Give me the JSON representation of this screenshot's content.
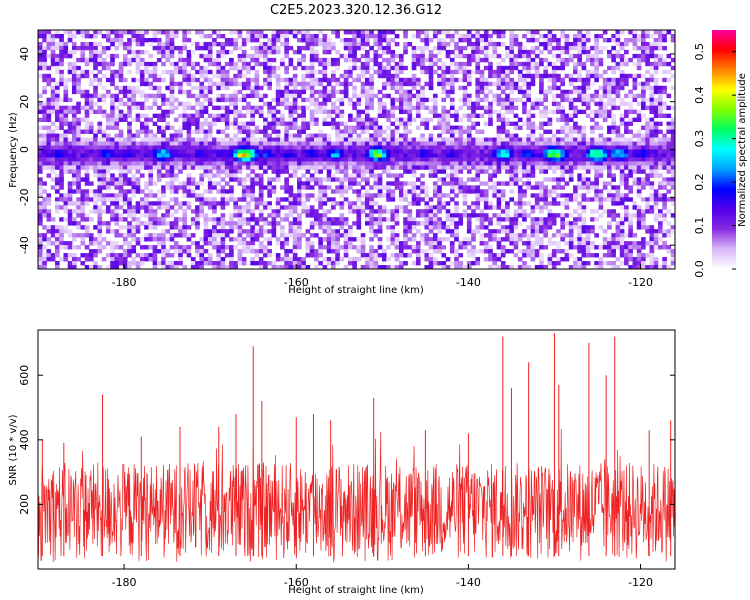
{
  "title": "C2E5.2023.320.12.36.G12",
  "chart_data": [
    {
      "type": "heatmap",
      "xlabel": "Height of straight line (km)",
      "ylabel": "Frequency (Hz)",
      "xlim": [
        -190,
        -116
      ],
      "ylim": [
        -50,
        50
      ],
      "x_ticks": [
        -180,
        -160,
        -140,
        -120
      ],
      "y_ticks": [
        -40,
        -20,
        0,
        20,
        40
      ],
      "colorbar": {
        "label": "Normalized spectral amplitude",
        "range": [
          0.0,
          0.55
        ],
        "ticks": [
          0.0,
          0.1,
          0.2,
          0.3,
          0.4,
          0.5
        ],
        "colormap": [
          "#ffffff",
          "#d8b8f8",
          "#8a2be2",
          "#5000e8",
          "#0000ff",
          "#00a0ff",
          "#00ffff",
          "#00ff60",
          "#80ff00",
          "#ffff00",
          "#ff8000",
          "#ff0000",
          "#ff00a0"
        ]
      },
      "band_center_hz": -2,
      "band_hotspots": [
        {
          "x": -187.5,
          "value": 0.2
        },
        {
          "x": -182,
          "value": 0.22
        },
        {
          "x": -179.5,
          "value": 0.18
        },
        {
          "x": -175.5,
          "value": 0.3
        },
        {
          "x": -171,
          "value": 0.2
        },
        {
          "x": -168.5,
          "value": 0.18
        },
        {
          "x": -166,
          "value": 0.48
        },
        {
          "x": -163.5,
          "value": 0.22
        },
        {
          "x": -161,
          "value": 0.2
        },
        {
          "x": -158,
          "value": 0.22
        },
        {
          "x": -155.5,
          "value": 0.28
        },
        {
          "x": -150.5,
          "value": 0.4
        },
        {
          "x": -145,
          "value": 0.2
        },
        {
          "x": -142,
          "value": 0.18
        },
        {
          "x": -136,
          "value": 0.32
        },
        {
          "x": -133,
          "value": 0.22
        },
        {
          "x": -130,
          "value": 0.42
        },
        {
          "x": -125,
          "value": 0.38
        },
        {
          "x": -122.5,
          "value": 0.3
        },
        {
          "x": -120,
          "value": 0.22
        }
      ]
    },
    {
      "type": "line",
      "xlabel": "Height of straight line (km)",
      "ylabel": "SNR (10 * v/v)",
      "xlim": [
        -190,
        -116
      ],
      "ylim": [
        0,
        740
      ],
      "x_ticks": [
        -180,
        -160,
        -140,
        -120
      ],
      "y_ticks": [
        200,
        400,
        600
      ],
      "line_color": "#ee2222",
      "noise_floor": [
        20,
        330
      ],
      "peaks": [
        {
          "x": -189.5,
          "y": 400
        },
        {
          "x": -187,
          "y": 390
        },
        {
          "x": -182.5,
          "y": 540
        },
        {
          "x": -178,
          "y": 410
        },
        {
          "x": -173.5,
          "y": 440
        },
        {
          "x": -169,
          "y": 440
        },
        {
          "x": -167,
          "y": 480
        },
        {
          "x": -165,
          "y": 690
        },
        {
          "x": -164,
          "y": 520
        },
        {
          "x": -160,
          "y": 470
        },
        {
          "x": -158,
          "y": 480
        },
        {
          "x": -156,
          "y": 460
        },
        {
          "x": -151,
          "y": 530
        },
        {
          "x": -145,
          "y": 430
        },
        {
          "x": -140,
          "y": 420
        },
        {
          "x": -136,
          "y": 720
        },
        {
          "x": -135,
          "y": 560
        },
        {
          "x": -133,
          "y": 640
        },
        {
          "x": -130,
          "y": 730
        },
        {
          "x": -129.5,
          "y": 570
        },
        {
          "x": -126,
          "y": 700
        },
        {
          "x": -124,
          "y": 600
        },
        {
          "x": -123,
          "y": 720
        },
        {
          "x": -119,
          "y": 430
        },
        {
          "x": -116.5,
          "y": 460
        }
      ]
    }
  ]
}
